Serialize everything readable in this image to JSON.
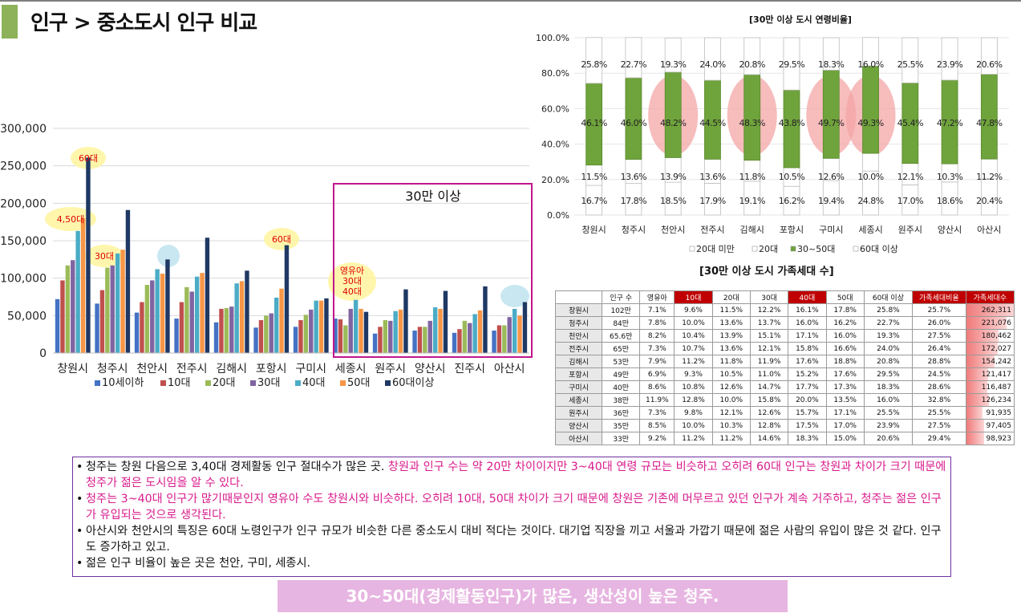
{
  "page": {
    "title": "인구 > 중소도시 인구 비교"
  },
  "colors": {
    "accent": "#8db25a",
    "series": [
      "#4472c4",
      "#c0504d",
      "#9bbb59",
      "#8064a2",
      "#4bacc6",
      "#f79646",
      "#1f3864"
    ],
    "box": "#c0168c",
    "highlight_yellow": "#fff59d",
    "highlight_blue": "#bfe3ef",
    "highlight_red": "#f4a6a6",
    "summary_bg": "#e7b5e1"
  },
  "chart_data": [
    {
      "type": "bar",
      "categories": [
        "창원시",
        "청주시",
        "천안시",
        "전주시",
        "김해시",
        "포항시",
        "구미시",
        "세종시",
        "원주시",
        "양산시",
        "진주시",
        "아산시"
      ],
      "series": [
        {
          "name": "10세이하",
          "values": [
            72000,
            66000,
            54000,
            46000,
            41000,
            34000,
            35000,
            46000,
            26000,
            30000,
            27000,
            30000
          ]
        },
        {
          "name": "10대",
          "values": [
            97000,
            84000,
            68000,
            68000,
            59000,
            44000,
            44000,
            45000,
            35000,
            35000,
            32000,
            37000
          ]
        },
        {
          "name": "20대",
          "values": [
            117000,
            114000,
            91000,
            88000,
            60000,
            50000,
            51000,
            37000,
            44000,
            35000,
            43000,
            37000
          ]
        },
        {
          "name": "30대",
          "values": [
            124000,
            117000,
            97000,
            82000,
            62000,
            53000,
            58000,
            59000,
            43000,
            43000,
            40000,
            48000
          ]
        },
        {
          "name": "40대",
          "values": [
            163000,
            133000,
            112000,
            102000,
            93000,
            74000,
            70000,
            71000,
            56000,
            61000,
            52000,
            59000
          ]
        },
        {
          "name": "50대",
          "values": [
            180000,
            138000,
            106000,
            107000,
            96000,
            86000,
            70000,
            59000,
            58000,
            59000,
            57000,
            50000
          ]
        },
        {
          "name": "60대이상",
          "values": [
            261000,
            191000,
            125000,
            154000,
            110000,
            144000,
            73000,
            55000,
            85000,
            83000,
            89000,
            68000
          ]
        }
      ],
      "yticks": [
        "0",
        "50,000",
        "100,000",
        "150,000",
        "200,000",
        "250,000",
        "300,000"
      ],
      "ylim": [
        0,
        300000
      ],
      "grid": true,
      "legend": "bottom",
      "annotations": {
        "box_label": "30만 이상",
        "bubbles": [
          {
            "text": "60대",
            "color": "yellow"
          },
          {
            "text": "4,50대",
            "color": "yellow"
          },
          {
            "text": "30대",
            "color": "yellow"
          },
          {
            "text": "60대",
            "color": "yellow"
          },
          {
            "text": "영유아 30대 40대",
            "color": "yellow"
          },
          {
            "text": "",
            "color": "blue"
          },
          {
            "text": "",
            "color": "blue"
          }
        ]
      }
    },
    {
      "type": "bar",
      "stacked": true,
      "title": "[30만 이상 도시 연령비율]",
      "categories": [
        "창원시",
        "청주시",
        "천안시",
        "전주시",
        "김해시",
        "포항시",
        "구미시",
        "세종시",
        "원주시",
        "양산시",
        "아산시"
      ],
      "series": [
        {
          "name": "20대 미만",
          "values": [
            16.7,
            17.8,
            18.5,
            17.9,
            19.1,
            16.2,
            19.4,
            24.8,
            17.0,
            18.6,
            20.4
          ]
        },
        {
          "name": "20대",
          "values": [
            11.5,
            13.6,
            13.9,
            13.6,
            11.8,
            10.5,
            12.6,
            10.0,
            12.1,
            10.3,
            11.2
          ]
        },
        {
          "name": "30~50대",
          "values": [
            46.1,
            46.0,
            48.2,
            44.5,
            48.3,
            43.8,
            49.7,
            49.3,
            45.4,
            47.2,
            47.8
          ]
        },
        {
          "name": "60대 이상",
          "values": [
            25.8,
            22.7,
            19.3,
            24.0,
            20.8,
            29.5,
            18.3,
            16.0,
            25.5,
            23.9,
            20.6
          ]
        }
      ],
      "labels": {
        "under20": [
          "16.7%",
          "17.8%",
          "18.5%",
          "17.9%",
          "19.1%",
          "16.2%",
          "19.4%",
          "24.8%",
          "17.0%",
          "18.6%",
          "20.4%"
        ],
        "age20": [
          "11.5%",
          "13.6%",
          "13.9%",
          "13.6%",
          "11.8%",
          "10.5%",
          "12.6%",
          "10.0%",
          "12.1%",
          "10.3%",
          "11.2%"
        ],
        "age3050": [
          "46.1%",
          "46.0%",
          "48.2%",
          "44.5%",
          "48.3%",
          "43.8%",
          "49.7%",
          "49.3%",
          "45.4%",
          "47.2%",
          "47.8%"
        ],
        "age60": [
          "25.8%",
          "22.7%",
          "19.3%",
          "24.0%",
          "20.8%",
          "29.5%",
          "18.3%",
          "16.0%",
          "25.5%",
          "23.9%",
          "20.6%"
        ]
      },
      "yticks": [
        "0.0%",
        "20.0%",
        "40.0%",
        "60.0%",
        "80.0%",
        "100.0%"
      ],
      "ylim": [
        0,
        100
      ],
      "legend": "bottom",
      "highlighted": [
        "천안시",
        "김해시",
        "구미시",
        "세종시"
      ]
    },
    {
      "type": "table",
      "title": "[30만 이상 도시 가족세대 수]",
      "columns": [
        "",
        "인구 수",
        "영유아",
        "10대",
        "20대",
        "30대",
        "40대",
        "50대",
        "60대 이상",
        "가족세대비율",
        "가족세대수"
      ],
      "red_columns": [
        3,
        6,
        9,
        10
      ],
      "rows": [
        [
          "창원시",
          "102만",
          "7.1%",
          "9.6%",
          "11.5%",
          "12.2%",
          "16.1%",
          "17.8%",
          "25.8%",
          "25.7%",
          "262,311"
        ],
        [
          "청주시",
          "84만",
          "7.8%",
          "10.0%",
          "13.6%",
          "13.7%",
          "16.0%",
          "16.2%",
          "22.7%",
          "26.0%",
          "221,076"
        ],
        [
          "천안시",
          "65.6만",
          "8.2%",
          "10.4%",
          "13.9%",
          "15.1%",
          "17.1%",
          "16.0%",
          "19.3%",
          "27.5%",
          "180,462"
        ],
        [
          "전주시",
          "65만",
          "7.3%",
          "10.7%",
          "13.6%",
          "12.1%",
          "15.8%",
          "16.6%",
          "24.0%",
          "26.4%",
          "172,027"
        ],
        [
          "김해시",
          "53만",
          "7.9%",
          "11.2%",
          "11.8%",
          "11.9%",
          "17.6%",
          "18.8%",
          "20.8%",
          "28.8%",
          "154,242"
        ],
        [
          "포항시",
          "49만",
          "6.9%",
          "9.3%",
          "10.5%",
          "11.0%",
          "15.2%",
          "17.6%",
          "29.5%",
          "24.5%",
          "121,417"
        ],
        [
          "구미시",
          "40만",
          "8.6%",
          "10.8%",
          "12.6%",
          "14.7%",
          "17.7%",
          "17.3%",
          "18.3%",
          "28.6%",
          "116,487"
        ],
        [
          "세종시",
          "38만",
          "11.9%",
          "12.8%",
          "10.0%",
          "15.8%",
          "20.0%",
          "13.5%",
          "16.0%",
          "32.8%",
          "126,234"
        ],
        [
          "원주시",
          "36만",
          "7.3%",
          "9.8%",
          "12.1%",
          "12.6%",
          "15.7%",
          "17.1%",
          "25.5%",
          "25.5%",
          "91,935"
        ],
        [
          "양산시",
          "35만",
          "8.5%",
          "10.0%",
          "10.3%",
          "12.8%",
          "17.5%",
          "17.0%",
          "23.9%",
          "27.5%",
          "97,405"
        ],
        [
          "아산시",
          "33만",
          "9.2%",
          "11.2%",
          "11.2%",
          "14.6%",
          "18.3%",
          "15.0%",
          "20.6%",
          "29.4%",
          "98,923"
        ]
      ],
      "family_counts": [
        262311,
        221076,
        180462,
        172027,
        154242,
        121417,
        116487,
        126234,
        91935,
        97405,
        98923
      ]
    }
  ],
  "notes": [
    {
      "plain": "청주는 창원 다음으로 3,40대 경제활동 인구 절대수가 많은 곳. ",
      "pink": "창원과 인구 수는 약 20만 차이이지만 3~40대 연령 규모는 비슷하고 오히려 60대 인구는 창원과 차이가 크기 때문에 청주가 젊은 도시임을 알 수 있다."
    },
    {
      "plain": "",
      "pink": "청주는 3~40대 인구가 많기때문인지 영유아 수도 창원시와 비슷하다. 오히려 10대, 50대 차이가 크기 때문에 창원은 기존에 머무르고 있던 인구가 계속 거주하고, 청주는 젊은 인구가 유입되는 것으로 생각된다."
    },
    {
      "plain": "아산시와 천안시의 특징은 60대 노령인구가 인구 규모가 비슷한 다른 중소도시 대비 적다는 것이다. 대기업 직장을 끼고 서울과 가깝기 때문에 젊은 사람의 유입이 많은 것 같다. 인구도 증가하고 있고.",
      "pink": ""
    },
    {
      "plain": "젊은 인구 비율이 높은 곳은 천안, 구미, 세종시.",
      "pink": ""
    }
  ],
  "summary": "30~50대(경제활동인구)가 많은, 생산성이 높은 청주."
}
